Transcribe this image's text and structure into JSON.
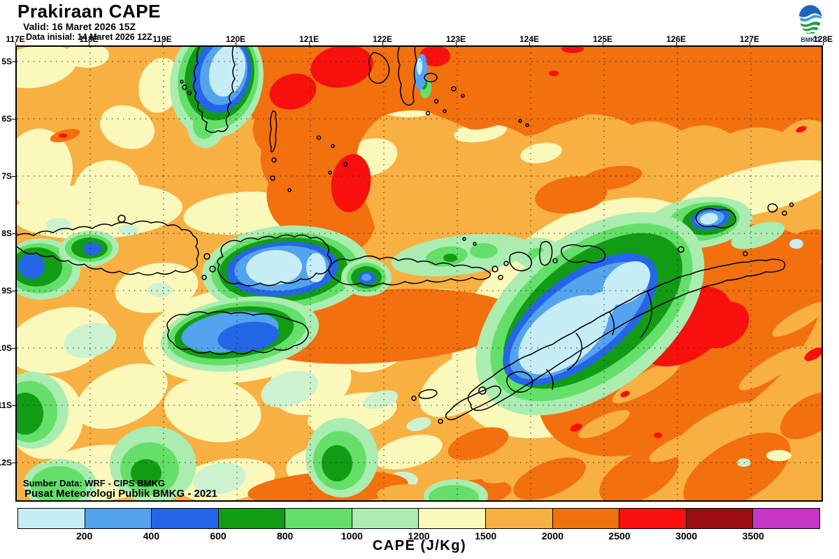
{
  "header": {
    "title": "Prakiraan CAPE",
    "valid_line": "Valid: 16 Maret 2026 15Z",
    "init_line": "Data inisial: 14 Maret 2026 12Z",
    "logo_text": "BMKG"
  },
  "map": {
    "lon_labels": [
      "117E",
      "118E",
      "119E",
      "120E",
      "121E",
      "122E",
      "123E",
      "124E",
      "125E",
      "126E",
      "127E",
      "128E"
    ],
    "lat_labels": [
      "5S",
      "6S",
      "7S",
      "8S",
      "9S",
      "10S",
      "11S",
      "12S"
    ],
    "source_line1": "Sumber Data: WRF - CIPS BMKG",
    "source_line2": "Pusat Meteorologi Publik BMKG - 2021"
  },
  "colorbar": {
    "title": "CAPE (J/Kg)",
    "tick_labels": [
      "200",
      "400",
      "600",
      "800",
      "1000",
      "1200",
      "1500",
      "2000",
      "2500",
      "3000",
      "3500"
    ],
    "segment_colors": [
      "#c6edf5",
      "#54a3ee",
      "#2566e8",
      "#129c16",
      "#64df69",
      "#abecb1",
      "#fbf8bb",
      "#f8b042",
      "#f2700e",
      "#f8100d",
      "#9c0d12",
      "#c636c6"
    ]
  }
}
